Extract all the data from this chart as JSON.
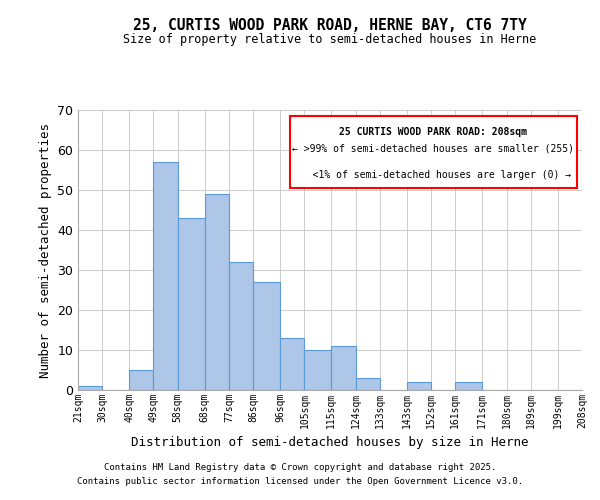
{
  "title": "25, CURTIS WOOD PARK ROAD, HERNE BAY, CT6 7TY",
  "subtitle": "Size of property relative to semi-detached houses in Herne",
  "xlabel": "Distribution of semi-detached houses by size in Herne",
  "ylabel": "Number of semi-detached properties",
  "bins": [
    21,
    30,
    40,
    49,
    58,
    68,
    77,
    86,
    96,
    105,
    115,
    124,
    133,
    143,
    152,
    161,
    171,
    180,
    189,
    199,
    208
  ],
  "counts": [
    1,
    0,
    5,
    57,
    43,
    49,
    32,
    27,
    13,
    10,
    11,
    3,
    0,
    2,
    0,
    2,
    0,
    0,
    0,
    0
  ],
  "bar_color": "#aec6e8",
  "bar_edge_color": "#5b9bd5",
  "ylim": [
    0,
    70
  ],
  "yticks": [
    0,
    10,
    20,
    30,
    40,
    50,
    60,
    70
  ],
  "legend_title": "25 CURTIS WOOD PARK ROAD: 208sqm",
  "legend_line1": "← >99% of semi-detached houses are smaller (255)",
  "legend_line2": "   <1% of semi-detached houses are larger (0) →",
  "legend_box_color": "#ff0000",
  "footer1": "Contains HM Land Registry data © Crown copyright and database right 2025.",
  "footer2": "Contains public sector information licensed under the Open Government Licence v3.0.",
  "bg_color": "#ffffff",
  "grid_color": "#cccccc",
  "tick_labels": [
    "21sqm",
    "30sqm",
    "40sqm",
    "49sqm",
    "58sqm",
    "68sqm",
    "77sqm",
    "86sqm",
    "96sqm",
    "105sqm",
    "115sqm",
    "124sqm",
    "133sqm",
    "143sqm",
    "152sqm",
    "161sqm",
    "171sqm",
    "180sqm",
    "189sqm",
    "199sqm",
    "208sqm"
  ]
}
